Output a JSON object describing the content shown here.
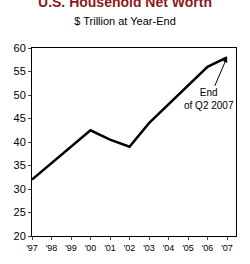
{
  "chart_data": {
    "type": "line",
    "title": "U.S. Household Net Worth",
    "subtitle": "$ Trillion at Year-End",
    "categories": [
      "'97",
      "'98",
      "'99",
      "'00",
      "'01",
      "'02",
      "'03",
      "'04",
      "'05",
      "'06",
      "'07"
    ],
    "values": [
      32,
      35.5,
      39,
      42.5,
      40.5,
      39,
      44,
      48,
      52,
      56,
      58
    ],
    "color": "#000000",
    "ylim": [
      20,
      60
    ],
    "yticks": [
      20,
      25,
      30,
      35,
      40,
      45,
      50,
      55,
      60
    ],
    "grid": false,
    "annotation": {
      "text": "End of Q2 2007",
      "x": "'07",
      "y": 58
    }
  }
}
